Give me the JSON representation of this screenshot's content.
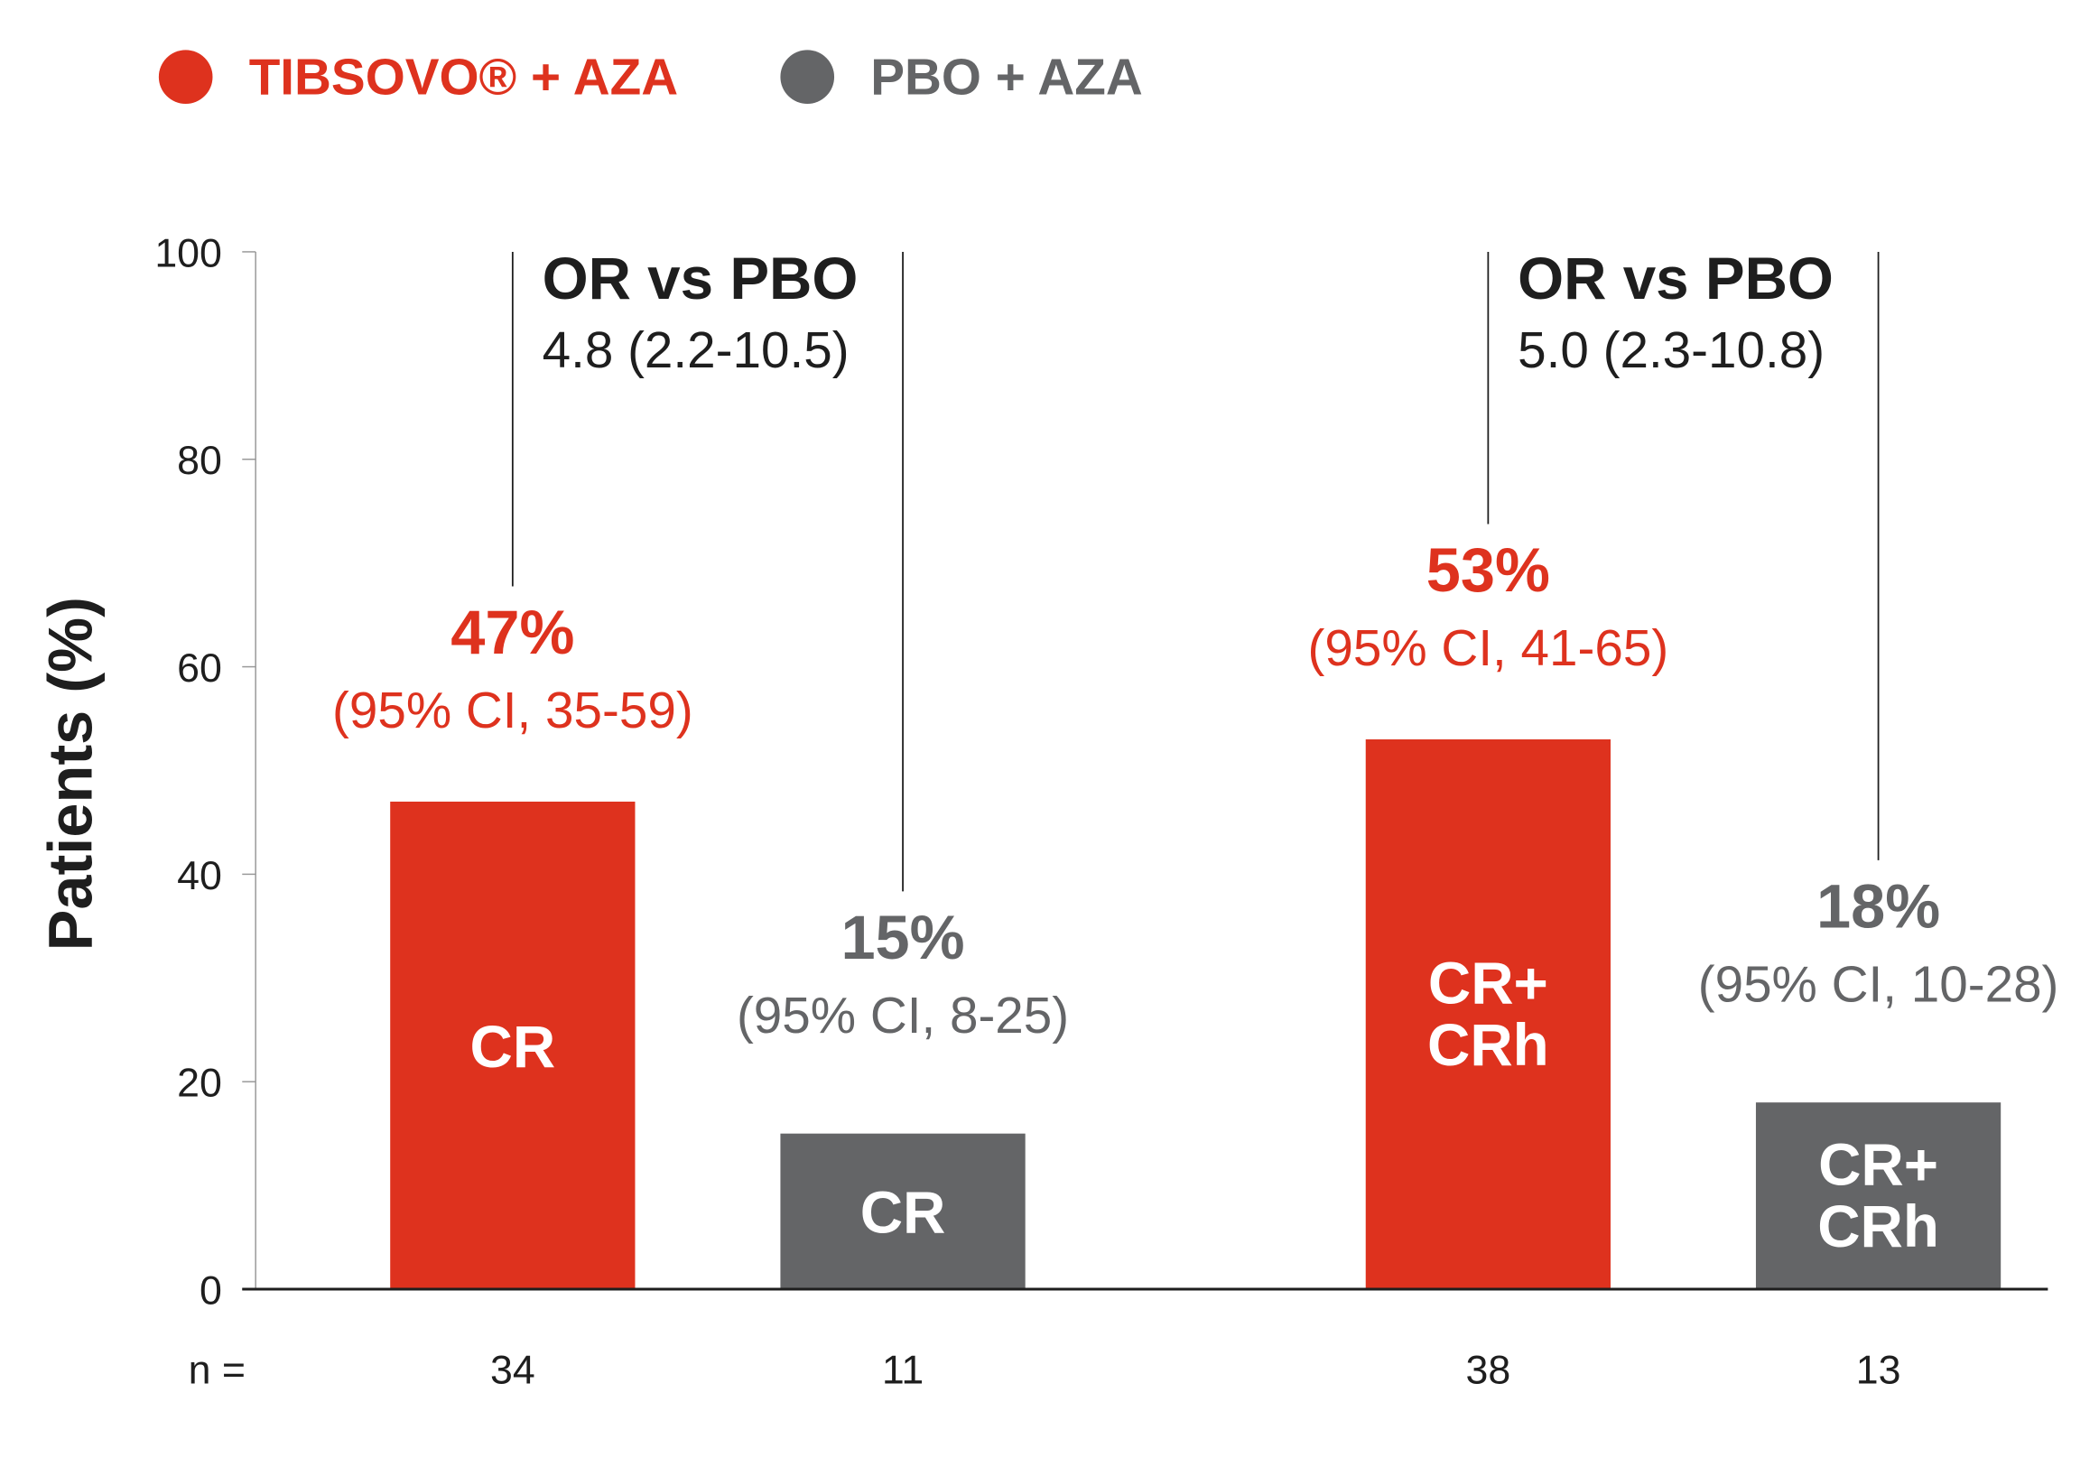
{
  "chart_data": {
    "type": "bar",
    "title": "",
    "xlabel": "",
    "ylabel": "Patients (%)",
    "ylim": [
      0,
      100
    ],
    "yticks": [
      "0",
      "20",
      "40",
      "60",
      "80",
      "100"
    ],
    "ytick_values": [
      0,
      20,
      40,
      60,
      80,
      100
    ],
    "legend_position": "top-left",
    "legend": [
      {
        "label": "TIBSOVO® + AZA",
        "color": "#DE321E"
      },
      {
        "label": "PBO + AZA",
        "color": "#646567"
      }
    ],
    "bars": [
      {
        "series": "TIBSOVO® + AZA",
        "value": 47,
        "inner_label": [
          "CR"
        ],
        "value_label": "47%",
        "ci_label": "(95% CI, 35-59)",
        "n": "34",
        "color": "#DE321E"
      },
      {
        "series": "PBO + AZA",
        "value": 15,
        "inner_label": [
          "CR"
        ],
        "value_label": "15%",
        "ci_label": "(95% CI, 8-25)",
        "n": "11",
        "color": "#646567"
      },
      {
        "series": "TIBSOVO® + AZA",
        "value": 53,
        "inner_label": [
          "CR+",
          "CRh"
        ],
        "value_label": "53%",
        "ci_label": "(95% CI, 41-65)",
        "n": "38",
        "color": "#DE321E"
      },
      {
        "series": "PBO + AZA",
        "value": 18,
        "inner_label": [
          "CR+",
          "CRh"
        ],
        "value_label": "18%",
        "ci_label": "(95% CI, 10-28)",
        "n": "13",
        "color": "#646567"
      }
    ],
    "n_label": "n =",
    "annotations": [
      {
        "title": "OR vs PBO",
        "value": "4.8 (2.2-10.5)"
      },
      {
        "title": "OR vs PBO",
        "value": "5.0 (2.3-10.8)"
      }
    ]
  }
}
